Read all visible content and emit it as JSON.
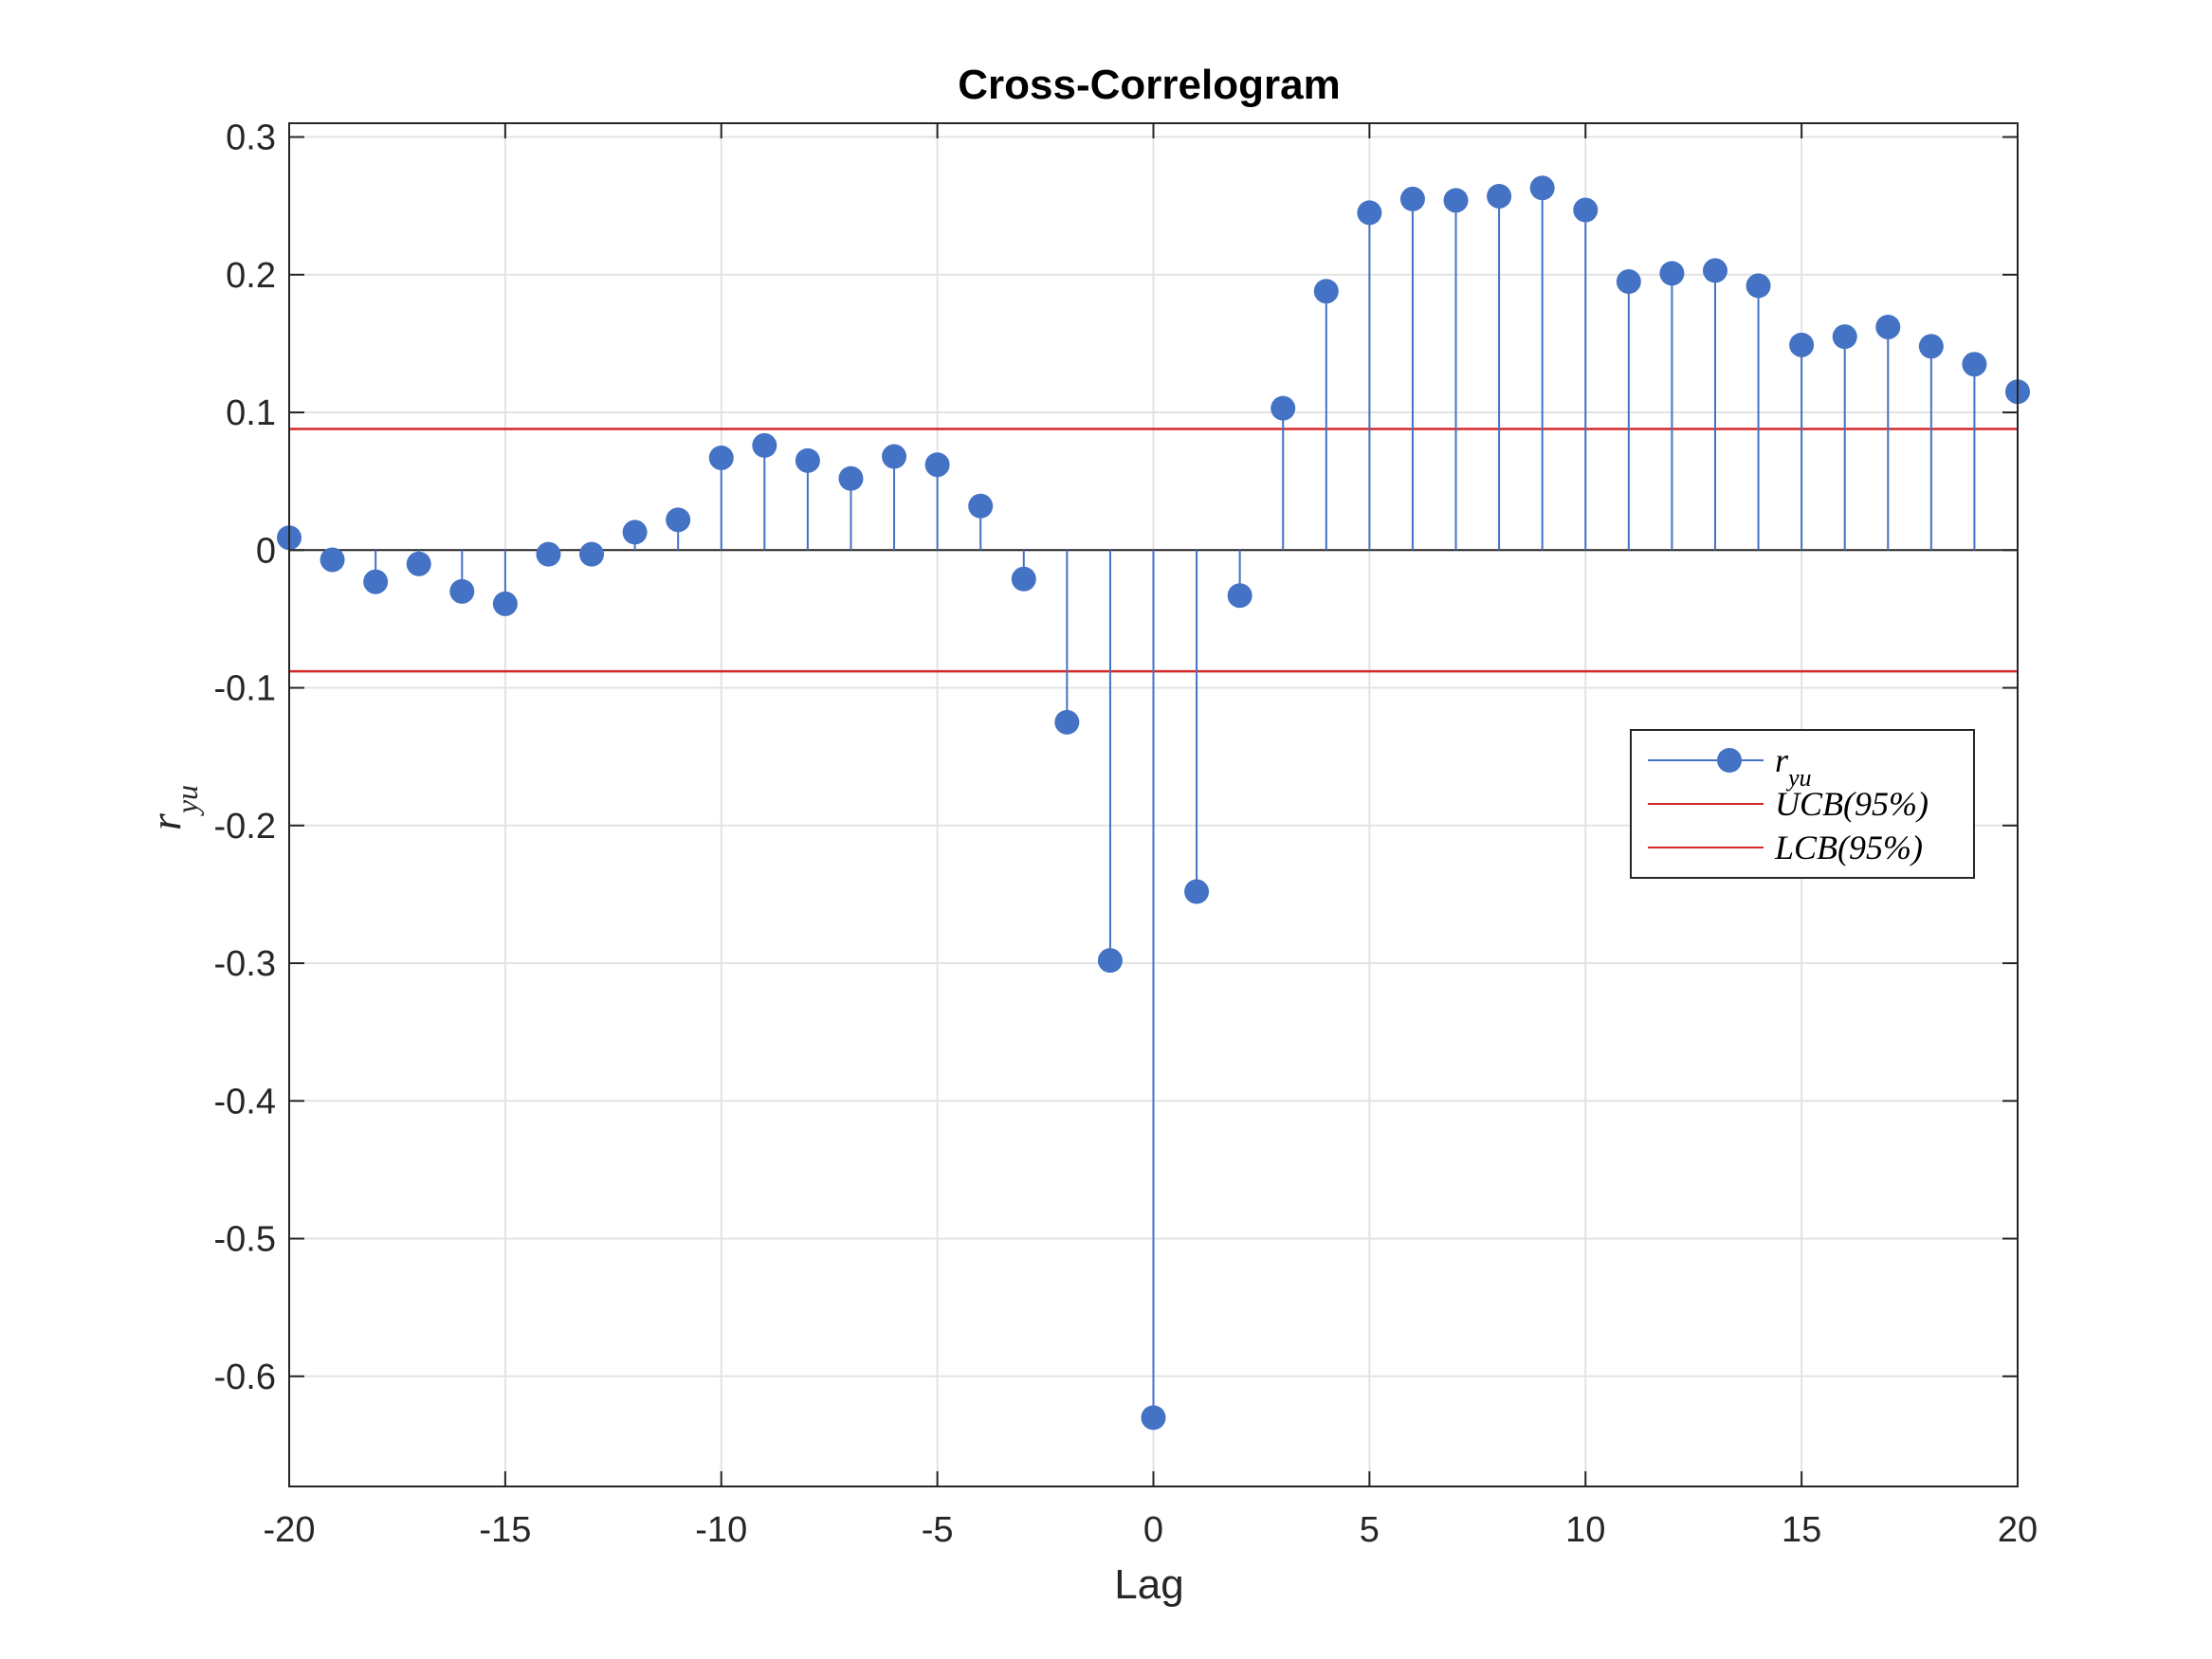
{
  "chart_data": {
    "type": "stem",
    "title": "Cross-Correlogram",
    "xlabel": "Lag",
    "ylabel": "r_yu",
    "xlim": [
      -20,
      20
    ],
    "ylim": [
      -0.68,
      0.31
    ],
    "xticks": [
      -20,
      -15,
      -10,
      -5,
      0,
      5,
      10,
      15,
      20
    ],
    "xtick_labels": [
      "-20",
      "-15",
      "-10",
      "-5",
      "0",
      "5",
      "10",
      "15",
      "20"
    ],
    "yticks": [
      -0.6,
      -0.5,
      -0.4,
      -0.3,
      -0.2,
      -0.1,
      0,
      0.1,
      0.2,
      0.3
    ],
    "ytick_labels": [
      "-0.6",
      "-0.5",
      "-0.4",
      "-0.3",
      "-0.2",
      "-0.1",
      "0",
      "0.1",
      "0.2",
      "0.3"
    ],
    "grid": true,
    "legend_position": "right",
    "series": [
      {
        "name": "r_yu",
        "legend_label": "r_yu",
        "kind": "stem",
        "color": "#4472C4",
        "x": [
          -20,
          -19,
          -18,
          -17,
          -16,
          -15,
          -14,
          -13,
          -12,
          -11,
          -10,
          -9,
          -8,
          -7,
          -6,
          -5,
          -4,
          -3,
          -2,
          -1,
          0,
          1,
          2,
          3,
          4,
          5,
          6,
          7,
          8,
          9,
          10,
          11,
          12,
          13,
          14,
          15,
          16,
          17,
          18,
          19,
          20
        ],
        "y": [
          0.009,
          -0.007,
          -0.023,
          -0.01,
          -0.03,
          -0.039,
          -0.003,
          -0.003,
          0.013,
          0.022,
          0.067,
          0.076,
          0.065,
          0.052,
          0.068,
          0.062,
          0.032,
          -0.021,
          -0.125,
          -0.298,
          -0.63,
          -0.248,
          -0.033,
          0.103,
          0.188,
          0.245,
          0.255,
          0.254,
          0.257,
          0.263,
          0.247,
          0.195,
          0.201,
          0.203,
          0.192,
          0.149,
          0.155,
          0.162,
          0.148,
          0.135,
          0.115
        ]
      },
      {
        "name": "UCB(95%)",
        "legend_label": "UCB(95%)",
        "kind": "hline",
        "color": "#D62728",
        "value": 0.088
      },
      {
        "name": "LCB(95%)",
        "legend_label": "LCB(95%)",
        "kind": "hline",
        "color": "#D62728",
        "value": -0.088
      }
    ]
  }
}
